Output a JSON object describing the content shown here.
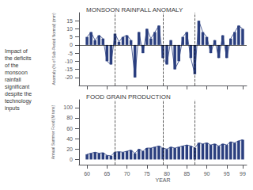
{
  "chart_data": [
    {
      "type": "bar",
      "title": "MONSOON RAINFALL ANOMALY",
      "annotation": "Impact of\nthe deficits\nof the\nmonsoon\nrainfall\nsignificant\ndespite the\ntechnology\ninputs",
      "ylabel": "Anomaly (% of Sub-Period Normal) (mm)",
      "x": [
        60,
        61,
        62,
        63,
        64,
        65,
        66,
        67,
        68,
        69,
        70,
        71,
        72,
        73,
        74,
        75,
        76,
        77,
        78,
        79,
        80,
        81,
        82,
        83,
        84,
        85,
        86,
        87,
        88,
        89,
        90,
        91,
        92,
        93,
        94,
        95,
        96,
        97,
        98,
        99
      ],
      "series": [
        {
          "type": "bar",
          "color": "#2b3f7f",
          "values": [
            5,
            8,
            3,
            6,
            4,
            -10,
            -12,
            7,
            2,
            5,
            6,
            3,
            -20,
            8,
            -5,
            10,
            4,
            8,
            12,
            -8,
            -12,
            3,
            -15,
            -10,
            5,
            8,
            -8,
            -18,
            15,
            8,
            5,
            -5,
            3,
            -8,
            6,
            -8,
            4,
            8,
            12,
            10
          ]
        },
        {
          "type": "line",
          "color": "#2b3f7f",
          "values": [
            5,
            8,
            3,
            6,
            4,
            -10,
            -12,
            7,
            2,
            5,
            6,
            3,
            -20,
            8,
            -5,
            10,
            4,
            8,
            12,
            -8,
            -12,
            3,
            -15,
            -10,
            5,
            8,
            -8,
            -18,
            15,
            8,
            5,
            -5,
            3,
            -8,
            6,
            -8,
            4,
            8,
            12,
            10
          ]
        }
      ],
      "xlim": [
        58,
        100
      ],
      "xticks": [
        60,
        65,
        70,
        75,
        80,
        85,
        90,
        95,
        99
      ],
      "ylim": [
        -25,
        20
      ],
      "yticks": [
        -20,
        -15,
        -10,
        -5,
        0,
        5,
        10,
        15
      ],
      "tick_labels": "y",
      "grid": false,
      "vlines": [
        67,
        79,
        87
      ],
      "hlines": [
        0
      ]
    },
    {
      "type": "bar",
      "title": "FOOD GRAIN PRODUCTION",
      "xlabel": "YEAR",
      "ylabel": "Annual Summer Food (M tons)",
      "x": [
        60,
        61,
        62,
        63,
        64,
        65,
        66,
        67,
        68,
        69,
        70,
        71,
        72,
        73,
        74,
        75,
        76,
        77,
        78,
        79,
        80,
        81,
        82,
        83,
        84,
        85,
        86,
        87,
        88,
        89,
        90,
        91,
        92,
        93,
        94,
        95,
        96,
        97,
        98,
        99
      ],
      "series": [
        {
          "type": "bar",
          "color": "#2b3f7f",
          "values": [
            10,
            12,
            14,
            12,
            13,
            8,
            7,
            14,
            15,
            14,
            16,
            18,
            12,
            20,
            16,
            22,
            22,
            24,
            26,
            22,
            20,
            24,
            22,
            24,
            26,
            28,
            26,
            22,
            32,
            30,
            32,
            28,
            30,
            26,
            30,
            28,
            34,
            32,
            36,
            38
          ]
        },
        {
          "type": "line",
          "color": "#2b3f7f",
          "values": [
            10,
            12,
            14,
            12,
            13,
            8,
            7,
            14,
            15,
            14,
            16,
            18,
            12,
            20,
            16,
            22,
            22,
            24,
            26,
            22,
            20,
            24,
            22,
            24,
            26,
            28,
            26,
            22,
            32,
            30,
            32,
            28,
            30,
            26,
            30,
            28,
            34,
            32,
            36,
            38
          ]
        }
      ],
      "xlim": [
        58,
        100
      ],
      "xticks": [
        60,
        65,
        70,
        75,
        80,
        85,
        90,
        95,
        99
      ],
      "ylim": [
        -10,
        115
      ],
      "yticks": [
        0,
        20,
        40,
        60,
        80,
        100
      ],
      "grid": false,
      "vlines": [
        67,
        79,
        87
      ]
    }
  ]
}
